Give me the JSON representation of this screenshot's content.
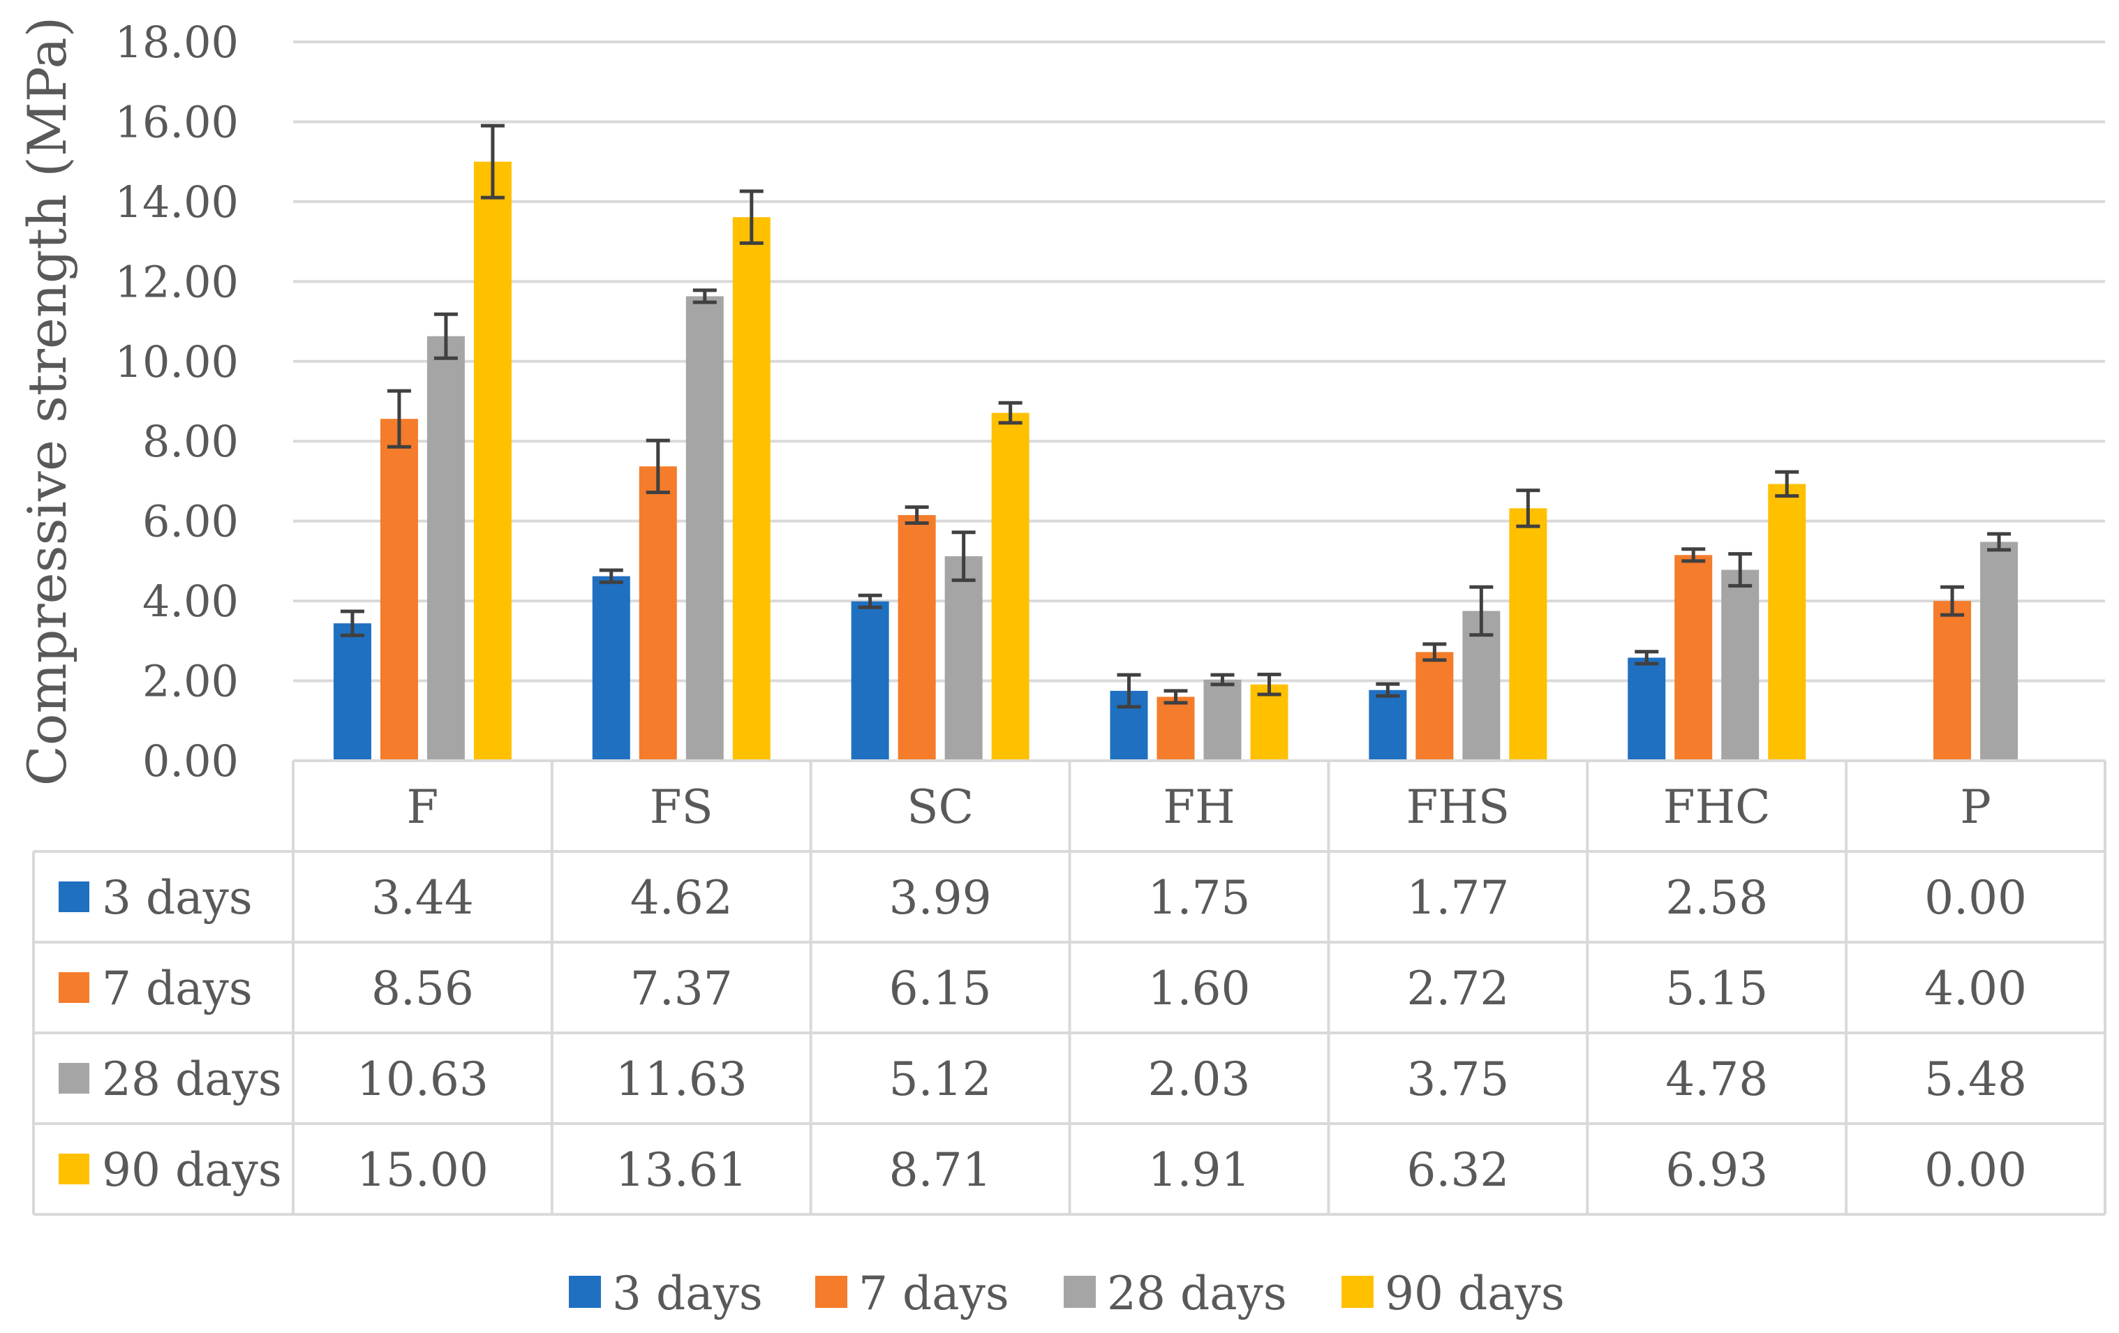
{
  "chart_data": {
    "type": "bar",
    "ylabel": "Compressive strength (MPa)",
    "xlabel": "",
    "ylim": [
      0,
      18
    ],
    "ytick_step": 2,
    "ytick_labels": [
      "0.00",
      "2.00",
      "4.00",
      "6.00",
      "8.00",
      "10.00",
      "12.00",
      "14.00",
      "16.00",
      "18.00"
    ],
    "grid": true,
    "categories": [
      "F",
      "FS",
      "SC",
      "FH",
      "FHS",
      "FHC",
      "P"
    ],
    "series": [
      {
        "name": "3 days",
        "color": "#1F70C1",
        "values": [
          3.44,
          4.62,
          3.99,
          1.75,
          1.77,
          2.58,
          0.0
        ],
        "labels": [
          "3.44",
          "4.62",
          "3.99",
          "1.75",
          "1.77",
          "2.58",
          "0.00"
        ],
        "errors": [
          0.3,
          0.15,
          0.15,
          0.4,
          0.15,
          0.15,
          0
        ]
      },
      {
        "name": "7 days",
        "color": "#F47C2A",
        "values": [
          8.56,
          7.37,
          6.15,
          1.6,
          2.72,
          5.15,
          4.0
        ],
        "labels": [
          "8.56",
          "7.37",
          "6.15",
          "1.60",
          "2.72",
          "5.15",
          "4.00"
        ],
        "errors": [
          0.7,
          0.65,
          0.2,
          0.15,
          0.2,
          0.15,
          0.35
        ]
      },
      {
        "name": "28 days",
        "color": "#A5A5A5",
        "values": [
          10.63,
          11.63,
          5.12,
          2.03,
          3.75,
          4.78,
          5.48
        ],
        "labels": [
          "10.63",
          "11.63",
          "5.12",
          "2.03",
          "3.75",
          "4.78",
          "5.48"
        ],
        "errors": [
          0.55,
          0.15,
          0.6,
          0.12,
          0.6,
          0.4,
          0.2
        ]
      },
      {
        "name": "90 days",
        "color": "#FFC000",
        "values": [
          15.0,
          13.61,
          8.71,
          1.91,
          6.32,
          6.93,
          0.0
        ],
        "labels": [
          "15.00",
          "13.61",
          "8.71",
          "1.91",
          "6.32",
          "6.93",
          "0.00"
        ],
        "errors": [
          0.9,
          0.65,
          0.25,
          0.25,
          0.45,
          0.3,
          0
        ]
      }
    ],
    "legend_position": "bottom"
  }
}
